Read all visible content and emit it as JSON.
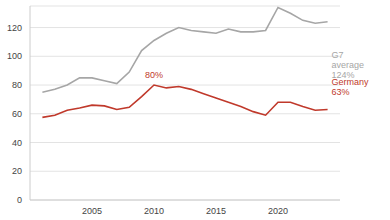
{
  "chart_data": {
    "type": "line",
    "x": [
      2001,
      2002,
      2003,
      2004,
      2005,
      2006,
      2007,
      2008,
      2009,
      2010,
      2011,
      2012,
      2013,
      2014,
      2015,
      2016,
      2017,
      2018,
      2019,
      2020,
      2021,
      2022,
      2023,
      2024
    ],
    "series": [
      {
        "name": "G7 average",
        "color": "#a6a6a6",
        "values": [
          75,
          77,
          80,
          85,
          85,
          83,
          81,
          89,
          104,
          111,
          116,
          120,
          118,
          117,
          116,
          119,
          117,
          117,
          118,
          134,
          130,
          125,
          123,
          124
        ]
      },
      {
        "name": "Germany",
        "color": "#c0392b",
        "values": [
          57.5,
          59,
          62.5,
          64,
          66,
          65.5,
          63,
          64.5,
          72,
          80,
          78,
          79,
          77,
          74,
          71,
          68,
          65,
          61.5,
          59,
          68,
          68,
          65,
          62.5,
          63
        ]
      }
    ],
    "annotations": [
      {
        "text": "80%",
        "x": 2010,
        "y": 80,
        "color": "#c0392b"
      },
      {
        "text": "124%",
        "x": 2024,
        "y": 124,
        "color": "#a6a6a6"
      },
      {
        "text": "63%",
        "x": 2024,
        "y": 63,
        "color": "#c0392b"
      }
    ],
    "xlim": [
      2000,
      2025
    ],
    "xticks": [
      2005,
      2010,
      2015,
      2020
    ],
    "ylim": [
      0,
      135
    ],
    "yticks": [
      0,
      20,
      40,
      60,
      80,
      100,
      120
    ],
    "grid": true
  }
}
